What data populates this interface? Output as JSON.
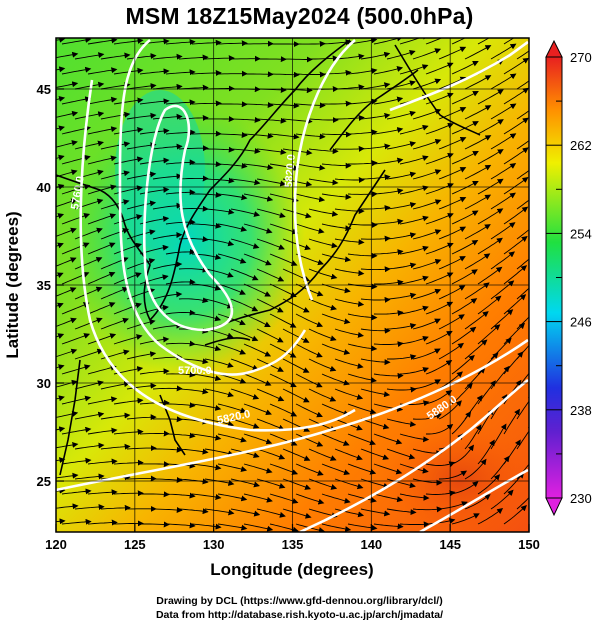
{
  "title": "MSM 18Z15May2024 (500.0hPa)",
  "axes": {
    "xlabel": "Longitude (degrees)",
    "ylabel": "Latitude  (degrees)",
    "xticks": [
      120,
      125,
      130,
      135,
      140,
      145,
      150
    ],
    "yticks": [
      25,
      30,
      35,
      40,
      45
    ],
    "xlim": [
      120,
      150
    ],
    "ylim": [
      22.4,
      47.6
    ]
  },
  "colorbar": {
    "ticks": [
      230,
      238,
      246,
      254,
      262,
      270
    ],
    "range": [
      230,
      270
    ],
    "colors": [
      "#e020e0",
      "#2020d0",
      "#00e0f0",
      "#20e040",
      "#f0f000",
      "#ff8000",
      "#e02020"
    ]
  },
  "contours": [
    {
      "label": "5700.0"
    },
    {
      "label": "5760.0"
    },
    {
      "label": "5820.0"
    },
    {
      "label": "5820.0"
    },
    {
      "label": "5880.0"
    }
  ],
  "credits": {
    "line1": "Drawing by DCL (https://www.gfd-dennou.org/library/dcl/)",
    "line2": "Data from http://database.rish.kyoto-u.ac.jp/arch/jmadata/"
  }
}
